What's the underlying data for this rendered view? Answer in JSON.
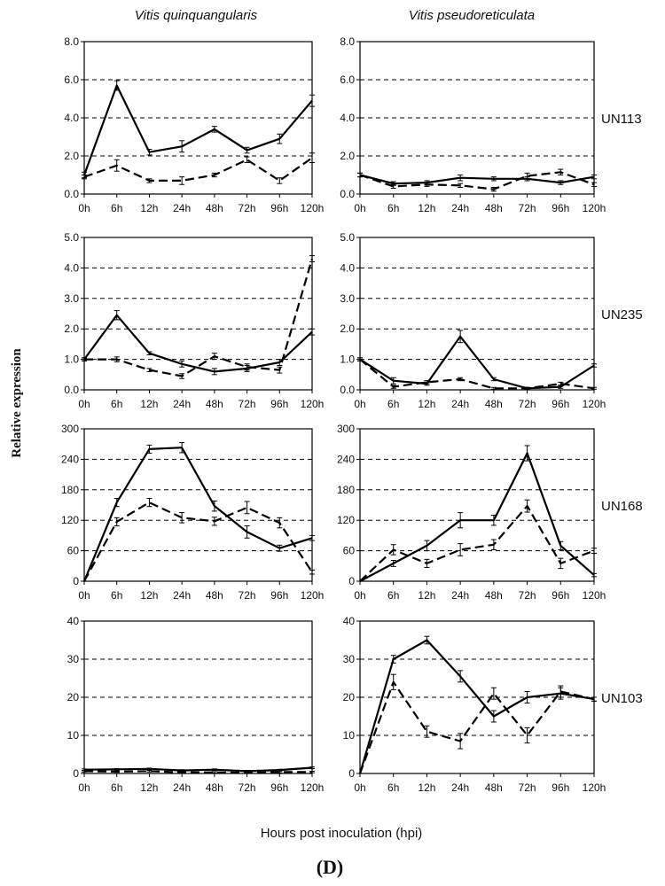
{
  "figure": {
    "column_titles": [
      "Vitis quinquangularis",
      "Vitis pseudoreticulata"
    ],
    "y_label": "Relative expression",
    "x_label": "Hours post inoculation (hpi)",
    "panel_label": "(D)"
  },
  "chart_data": [
    {
      "type": "line",
      "gene": "UN113",
      "species": "Vitis quinquangularis",
      "categories": [
        "0h",
        "6h",
        "12h",
        "24h",
        "48h",
        "72h",
        "96h",
        "120h"
      ],
      "yticks": [
        "0.0",
        "2.0",
        "4.0",
        "6.0",
        "8.0"
      ],
      "ylim": [
        0,
        8
      ],
      "grid": true,
      "series": [
        {
          "style": "solid",
          "values": [
            1.0,
            5.7,
            2.2,
            2.5,
            3.4,
            2.3,
            2.9,
            4.9
          ],
          "errors": [
            0.15,
            0.25,
            0.15,
            0.3,
            0.15,
            0.15,
            0.25,
            0.3
          ]
        },
        {
          "style": "dashed",
          "values": [
            0.9,
            1.5,
            0.7,
            0.7,
            1.0,
            1.8,
            0.7,
            1.9
          ],
          "errors": [
            0.1,
            0.3,
            0.1,
            0.2,
            0.1,
            0.15,
            0.15,
            0.25
          ]
        }
      ]
    },
    {
      "type": "line",
      "gene": "UN113",
      "species": "Vitis pseudoreticulata",
      "categories": [
        "0h",
        "6h",
        "12h",
        "24h",
        "48h",
        "72h",
        "96h",
        "120h"
      ],
      "yticks": [
        "0.0",
        "2.0",
        "4.0",
        "6.0",
        "8.0"
      ],
      "ylim": [
        0,
        8
      ],
      "grid": true,
      "series": [
        {
          "style": "solid",
          "values": [
            1.0,
            0.55,
            0.6,
            0.85,
            0.8,
            0.8,
            0.6,
            0.9
          ],
          "errors": [
            0.1,
            0.1,
            0.1,
            0.15,
            0.1,
            0.1,
            0.1,
            0.1
          ]
        },
        {
          "style": "dashed",
          "values": [
            1.0,
            0.4,
            0.5,
            0.45,
            0.25,
            0.95,
            1.15,
            0.5
          ],
          "errors": [
            0.1,
            0.1,
            0.1,
            0.1,
            0.1,
            0.15,
            0.15,
            0.1
          ]
        }
      ]
    },
    {
      "type": "line",
      "gene": "UN235",
      "species": "Vitis quinquangularis",
      "categories": [
        "0h",
        "6h",
        "12h",
        "24h",
        "48h",
        "72h",
        "96h",
        "120h"
      ],
      "yticks": [
        "0.0",
        "1.0",
        "2.0",
        "3.0",
        "4.0",
        "5.0"
      ],
      "ylim": [
        0,
        5
      ],
      "grid": true,
      "series": [
        {
          "style": "solid",
          "values": [
            1.0,
            2.45,
            1.2,
            0.85,
            0.6,
            0.7,
            0.9,
            1.9
          ],
          "errors": [
            0.05,
            0.15,
            0.05,
            0.1,
            0.1,
            0.1,
            0.1,
            0.1
          ]
        },
        {
          "style": "dashed",
          "values": [
            1.0,
            1.0,
            0.65,
            0.45,
            1.1,
            0.75,
            0.65,
            4.3
          ],
          "errors": [
            0.05,
            0.08,
            0.05,
            0.08,
            0.1,
            0.1,
            0.1,
            0.1
          ]
        }
      ]
    },
    {
      "type": "line",
      "gene": "UN235",
      "species": "Vitis pseudoreticulata",
      "categories": [
        "0h",
        "6h",
        "12h",
        "24h",
        "48h",
        "72h",
        "96h",
        "120h"
      ],
      "yticks": [
        "0.0",
        "1.0",
        "2.0",
        "3.0",
        "4.0",
        "5.0"
      ],
      "ylim": [
        0,
        5
      ],
      "grid": true,
      "series": [
        {
          "style": "solid",
          "values": [
            1.0,
            0.3,
            0.2,
            1.75,
            0.35,
            0.05,
            0.1,
            0.8
          ],
          "errors": [
            0.05,
            0.1,
            0.05,
            0.2,
            0.05,
            0.03,
            0.05,
            0.05
          ]
        },
        {
          "style": "dashed",
          "values": [
            1.0,
            0.1,
            0.25,
            0.35,
            0.05,
            0.05,
            0.2,
            0.05
          ],
          "errors": [
            0.05,
            0.05,
            0.05,
            0.05,
            0.03,
            0.03,
            0.05,
            0.03
          ]
        }
      ]
    },
    {
      "type": "line",
      "gene": "UN168",
      "species": "Vitis quinquangularis",
      "categories": [
        "0h",
        "6h",
        "12h",
        "24h",
        "48h",
        "72h",
        "96h",
        "120h"
      ],
      "yticks": [
        "0",
        "60",
        "120",
        "180",
        "240",
        "300"
      ],
      "ylim": [
        0,
        300
      ],
      "grid": true,
      "series": [
        {
          "style": "solid",
          "values": [
            0,
            155,
            260,
            263,
            148,
            97,
            65,
            85
          ],
          "errors": [
            0,
            8,
            8,
            10,
            10,
            12,
            6,
            5
          ]
        },
        {
          "style": "dashed",
          "values": [
            0,
            117,
            155,
            125,
            118,
            145,
            115,
            18
          ],
          "errors": [
            0,
            8,
            8,
            10,
            8,
            12,
            10,
            4
          ]
        }
      ]
    },
    {
      "type": "line",
      "gene": "UN168",
      "species": "Vitis pseudoreticulata",
      "categories": [
        "0h",
        "6h",
        "12h",
        "24h",
        "48h",
        "72h",
        "96h",
        "120h"
      ],
      "yticks": [
        "0",
        "60",
        "120",
        "180",
        "240",
        "300"
      ],
      "ylim": [
        0,
        300
      ],
      "grid": true,
      "series": [
        {
          "style": "solid",
          "values": [
            0,
            35,
            70,
            120,
            120,
            252,
            70,
            12
          ],
          "errors": [
            0,
            6,
            10,
            15,
            10,
            15,
            8,
            3
          ]
        },
        {
          "style": "dashed",
          "values": [
            0,
            62,
            35,
            62,
            72,
            148,
            35,
            60
          ],
          "errors": [
            0,
            10,
            8,
            12,
            10,
            12,
            10,
            5
          ]
        }
      ]
    },
    {
      "type": "line",
      "gene": "UN103",
      "species": "Vitis quinquangularis",
      "categories": [
        "0h",
        "6h",
        "12h",
        "24h",
        "48h",
        "72h",
        "96h",
        "120h"
      ],
      "yticks": [
        "0",
        "10",
        "20",
        "30",
        "40"
      ],
      "ylim": [
        0,
        40
      ],
      "grid": true,
      "series": [
        {
          "style": "solid",
          "values": [
            1.0,
            1.1,
            1.2,
            0.8,
            1.0,
            0.6,
            0.9,
            1.5
          ],
          "errors": [
            0.2,
            0.2,
            0.2,
            0.2,
            0.2,
            0.2,
            0.2,
            0.2
          ]
        },
        {
          "style": "dashed",
          "values": [
            0.6,
            0.5,
            0.6,
            0.3,
            0.3,
            0.2,
            0.4,
            0.4
          ],
          "errors": [
            0.2,
            0.2,
            0.2,
            0.2,
            0.2,
            0.2,
            0.2,
            0.2
          ]
        }
      ]
    },
    {
      "type": "line",
      "gene": "UN103",
      "species": "Vitis pseudoreticulata",
      "categories": [
        "0h",
        "6h",
        "12h",
        "24h",
        "48h",
        "72h",
        "96h",
        "120h"
      ],
      "yticks": [
        "0",
        "10",
        "20",
        "30",
        "40"
      ],
      "ylim": [
        0,
        40
      ],
      "grid": true,
      "series": [
        {
          "style": "solid",
          "values": [
            0,
            30,
            35,
            25.5,
            15,
            20,
            21,
            19.5
          ],
          "errors": [
            0,
            1,
            1,
            1.5,
            1.5,
            1.5,
            1.5,
            0.5
          ]
        },
        {
          "style": "dashed",
          "values": [
            0,
            24,
            11,
            8.5,
            21,
            10,
            21.5,
            19.5
          ],
          "errors": [
            0,
            2,
            1.5,
            2,
            1.5,
            2,
            1.5,
            0.5
          ]
        }
      ]
    }
  ]
}
